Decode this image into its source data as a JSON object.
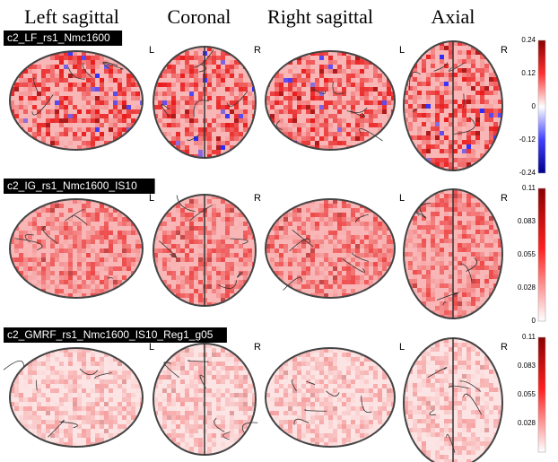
{
  "columns": [
    "Left sagittal",
    "Coronal",
    "Right sagittal",
    "Axial"
  ],
  "side_labels": [
    "L",
    "R"
  ],
  "rows": [
    {
      "label": "c2_LF_rs1_Nmc1600",
      "colorbar": [
        "0.24",
        "0.12",
        "0",
        "-0.12",
        "-0.24"
      ]
    },
    {
      "label": "c2_IG_rs1_Nmc1600_IS10",
      "colorbar": [
        "0.11",
        "0.083",
        "0.055",
        "0.028",
        "0"
      ]
    },
    {
      "label": "c2_GMRF_rs1_Nmc1600_IS10_Reg1_g05",
      "colorbar": [
        "0.11",
        "0.083",
        "0.055",
        "0.028"
      ]
    }
  ]
}
